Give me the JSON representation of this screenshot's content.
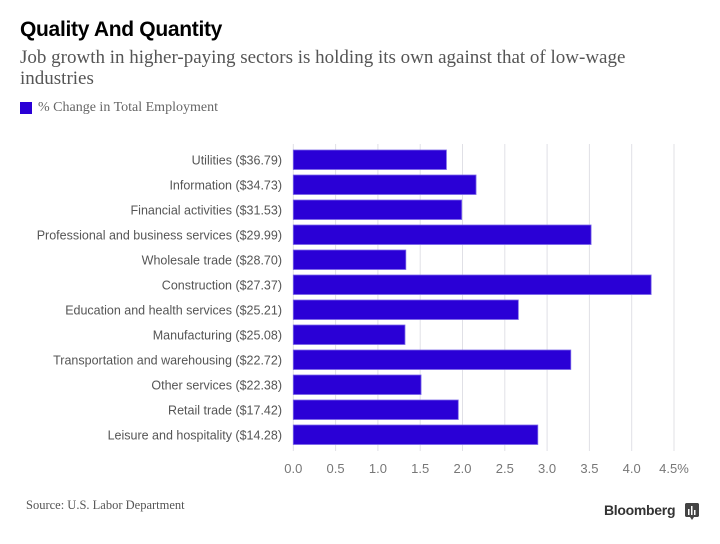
{
  "header": {
    "title": "Quality And Quantity",
    "subtitle": "Job growth in higher-paying sectors is holding its own against that of low-wage industries"
  },
  "legend": {
    "label": "% Change in Total Employment",
    "color": "#2a00d6"
  },
  "footer": {
    "source": "Source: U.S. Labor Department",
    "brand": "Bloomberg",
    "brand_icon": "bloomberg-chart-icon"
  },
  "chart_data": {
    "type": "bar",
    "orientation": "horizontal",
    "title": "Quality And Quantity",
    "subtitle": "Job growth in higher-paying sectors is holding its own against that of low-wage industries",
    "xlabel": "",
    "ylabel": "",
    "xlim": [
      0,
      4.5
    ],
    "grid": true,
    "legend_position": "top-left",
    "categories": [
      "Utilities ($36.79)",
      "Information ($34.73)",
      "Financial activities ($31.53)",
      "Professional and business services ($29.99)",
      "Wholesale trade ($28.70)",
      "Construction ($27.37)",
      "Education and health services ($25.21)",
      "Manufacturing ($25.08)",
      "Transportation and warehousing ($22.72)",
      "Other services ($22.38)",
      "Retail trade ($17.42)",
      "Leisure and hospitality ($14.28)"
    ],
    "series": [
      {
        "name": "% Change in Total Employment",
        "color": "#2a00d6",
        "values": [
          1.81,
          2.16,
          1.99,
          3.52,
          1.33,
          4.23,
          2.66,
          1.32,
          3.28,
          1.51,
          1.95,
          2.89
        ]
      }
    ],
    "x_ticks": [
      0,
      0.5,
      1.0,
      1.5,
      2.0,
      2.5,
      3.0,
      3.5,
      4.0,
      4.5
    ],
    "x_tick_labels": [
      "0.0",
      "0.5",
      "1.0",
      "1.5",
      "2.0",
      "2.5",
      "3.0",
      "3.5",
      "4.0",
      "4.5%"
    ]
  }
}
